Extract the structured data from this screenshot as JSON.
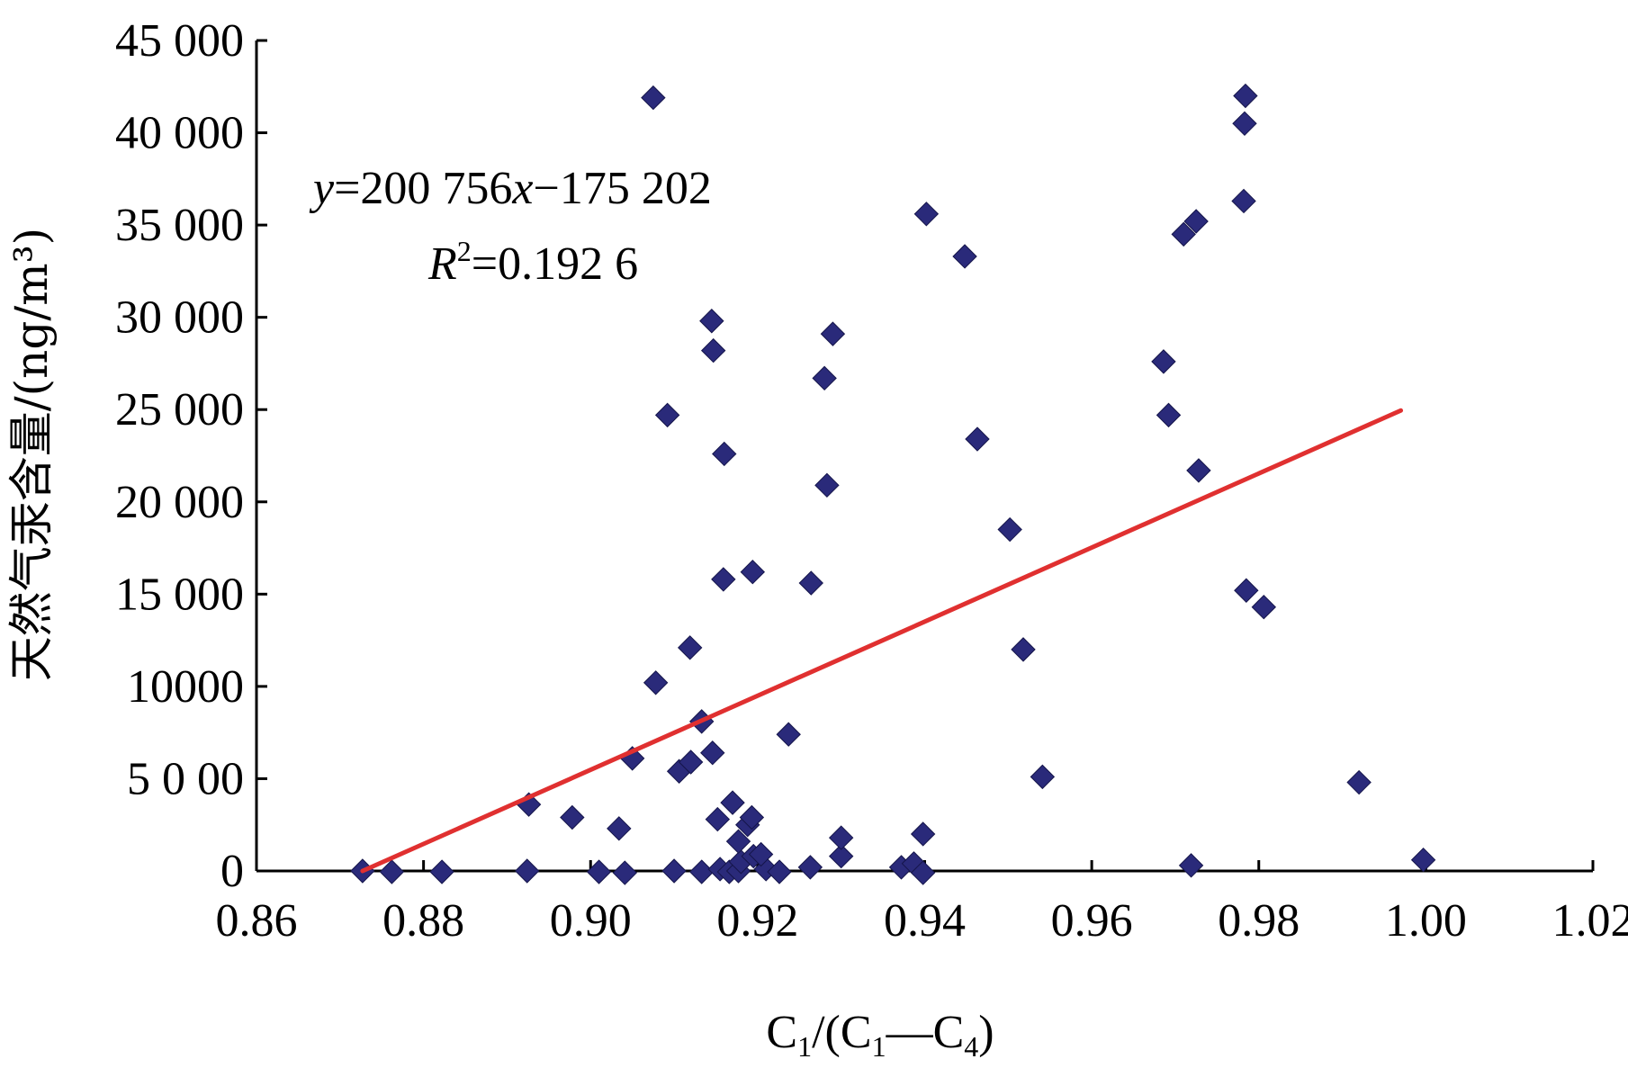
{
  "chart_data": {
    "type": "scatter",
    "xlabel": {
      "parts": [
        "C",
        "1",
        "/(C",
        "1",
        "—C",
        "4",
        ")"
      ]
    },
    "ylabel": "天然气汞含量/(ng/m³)",
    "xlim": [
      0.86,
      1.02
    ],
    "ylim": [
      0,
      45000
    ],
    "x_ticks": [
      0.86,
      0.88,
      0.9,
      0.92,
      0.94,
      0.96,
      0.98,
      1.0,
      1.02
    ],
    "x_tick_labels": [
      "0.86",
      "0.88",
      "0.90",
      "0.92",
      "0.94",
      "0.96",
      "0.98",
      "1.00",
      "1.02"
    ],
    "y_ticks": [
      0,
      5000,
      10000,
      15000,
      20000,
      25000,
      30000,
      35000,
      40000,
      45000
    ],
    "y_tick_labels": [
      "0",
      "5 0 00",
      "10000",
      "15 000",
      "20 000",
      "25 000",
      "30 000",
      "35 000",
      "40 000",
      "45 000"
    ],
    "grid": false,
    "marker_color": "#2a2a7a",
    "trend_color": "#e03030",
    "equation": {
      "y": "y",
      "eq1": "=200 756",
      "x": "x",
      "eq2": "−175 202"
    },
    "r_squared": {
      "R": "R",
      "sup": "2",
      "value": "=0.192 6"
    },
    "trendline": {
      "x": [
        0.8727,
        0.997
      ],
      "y": [
        0,
        24950
      ]
    },
    "series": [
      {
        "points": [
          [
            0.8727,
            0
          ],
          [
            0.8762,
            -50
          ],
          [
            0.8822,
            -50
          ],
          [
            0.8924,
            0
          ],
          [
            0.901,
            -50
          ],
          [
            0.9041,
            -100
          ],
          [
            0.91,
            0
          ],
          [
            0.9133,
            -50
          ],
          [
            0.9155,
            100
          ],
          [
            0.9166,
            -50
          ],
          [
            0.9177,
            0
          ],
          [
            0.921,
            100
          ],
          [
            0.9226,
            -50
          ],
          [
            0.9263,
            200
          ],
          [
            0.9372,
            200
          ],
          [
            0.9387,
            400
          ],
          [
            0.9398,
            -100
          ],
          [
            0.9719,
            300
          ],
          [
            0.9997,
            600
          ],
          [
            0.918,
            500
          ],
          [
            0.9195,
            800
          ],
          [
            0.9204,
            900
          ],
          [
            0.93,
            800
          ],
          [
            0.8926,
            3600
          ],
          [
            0.8978,
            2900
          ],
          [
            0.9034,
            2300
          ],
          [
            0.905,
            6100
          ],
          [
            0.9152,
            2800
          ],
          [
            0.917,
            3700
          ],
          [
            0.9177,
            1600
          ],
          [
            0.9188,
            2500
          ],
          [
            0.9193,
            2900
          ],
          [
            0.93,
            1800
          ],
          [
            0.9398,
            2000
          ],
          [
            0.9541,
            5100
          ],
          [
            0.992,
            4800
          ],
          [
            0.9078,
            10200
          ],
          [
            0.9119,
            12100
          ],
          [
            0.9133,
            8100
          ],
          [
            0.9106,
            5400
          ],
          [
            0.912,
            5900
          ],
          [
            0.9146,
            6400
          ],
          [
            0.9237,
            7400
          ],
          [
            0.9518,
            12000
          ],
          [
            0.9159,
            15800
          ],
          [
            0.9194,
            16200
          ],
          [
            0.9264,
            15600
          ],
          [
            0.9502,
            18500
          ],
          [
            0.9785,
            15200
          ],
          [
            0.9806,
            14300
          ],
          [
            0.9728,
            21700
          ],
          [
            0.9283,
            20900
          ],
          [
            0.9092,
            24700
          ],
          [
            0.916,
            22600
          ],
          [
            0.928,
            26700
          ],
          [
            0.9463,
            23400
          ],
          [
            0.9692,
            24700
          ],
          [
            0.9686,
            27600
          ],
          [
            0.9145,
            29800
          ],
          [
            0.9147,
            28200
          ],
          [
            0.929,
            29100
          ],
          [
            0.9402,
            35600
          ],
          [
            0.9448,
            33300
          ],
          [
            0.971,
            34500
          ],
          [
            0.9725,
            35200
          ],
          [
            0.9782,
            36300
          ],
          [
            0.9075,
            41900
          ],
          [
            0.9784,
            42000
          ],
          [
            0.9783,
            40500
          ]
        ]
      }
    ]
  }
}
